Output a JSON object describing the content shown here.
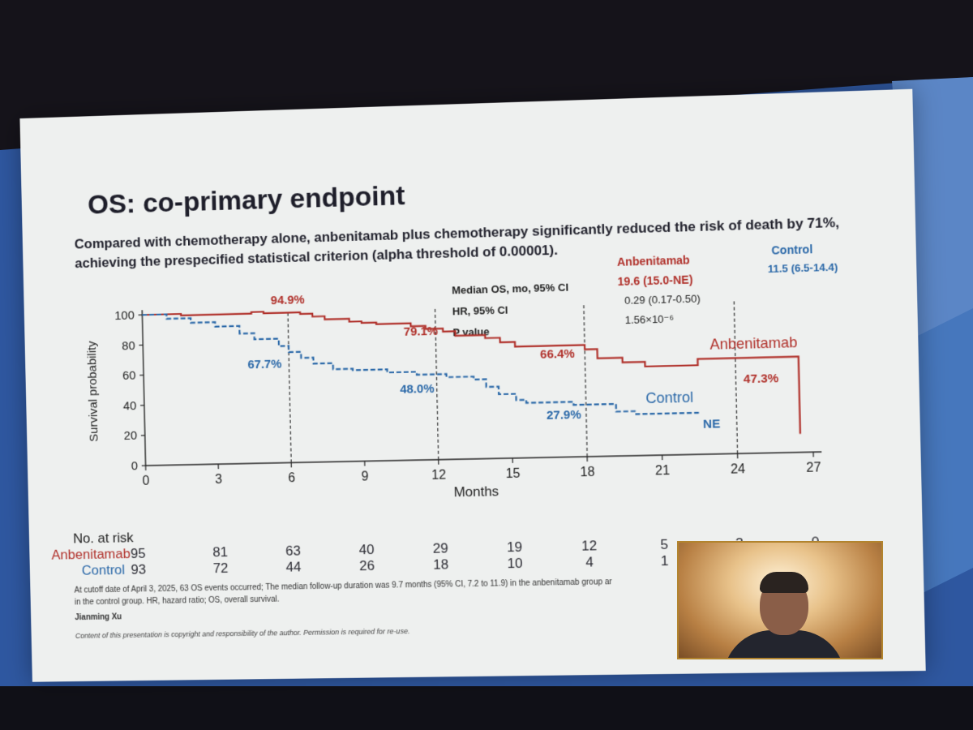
{
  "slide": {
    "title": "OS: co-primary endpoint",
    "subtitle_line1": "Compared with chemotherapy alone, anbenitamab plus chemotherapy significantly reduced the risk of death by 71%,",
    "subtitle_line2": "achieving the prespecified statistical criterion (alpha threshold of 0.00001).",
    "stats": {
      "header_anbenitamab": "Anbenitamab",
      "header_control": "Control",
      "median_label": "Median OS, mo, 95% CI",
      "hr_label": "HR, 95% CI",
      "p_label": "P value",
      "median_anbenitamab": "19.6 (15.0-NE)",
      "median_control": "11.5 (6.5-14.4)",
      "hr_value": "0.29 (0.17-0.50)",
      "p_value": "1.56×10⁻⁶"
    },
    "risk_table": {
      "title": "No. at risk",
      "rows": [
        {
          "label": "Anbenitamab",
          "values": [
            "95",
            "81",
            "63",
            "40",
            "29",
            "19",
            "12",
            "5",
            "3",
            "0"
          ]
        },
        {
          "label": "Control",
          "values": [
            "93",
            "72",
            "44",
            "26",
            "18",
            "10",
            "4",
            "1",
            "",
            ""
          ]
        }
      ]
    },
    "footnote_line1": "At cutoff date of April 3, 2025, 63 OS events occurred; The median follow-up duration was 9.7 months (95% CI, 7.2 to 11.9) in the anbenitamab group ar",
    "footnote_line2": "in the control group. HR, hazard ratio; OS, overall survival.",
    "author": "Jianming Xu",
    "copyright": "Content of this presentation is copyright and responsibility of the author. Permission is required for re-use."
  },
  "chart_data": {
    "type": "line",
    "title": "",
    "xlabel": "Months",
    "ylabel": "Survival probability",
    "xlim": [
      0,
      27
    ],
    "ylim": [
      0,
      100
    ],
    "x_ticks": [
      0,
      3,
      6,
      9,
      12,
      15,
      18,
      21,
      24,
      27
    ],
    "y_ticks": [
      0,
      20,
      40,
      60,
      80,
      100
    ],
    "colors": {
      "anbenitamab": "#b0302a",
      "control": "#2a68a8"
    },
    "series": [
      {
        "name": "Anbenitamab",
        "style": "solid step",
        "points": [
          [
            0,
            100
          ],
          [
            1.6,
            100
          ],
          [
            1.6,
            99
          ],
          [
            4.5,
            99
          ],
          [
            4.5,
            100
          ],
          [
            5,
            100
          ],
          [
            5,
            99
          ],
          [
            6.5,
            99
          ],
          [
            6.5,
            98
          ],
          [
            7,
            98
          ],
          [
            7,
            96
          ],
          [
            7.5,
            96
          ],
          [
            7.5,
            94
          ],
          [
            8.5,
            94
          ],
          [
            8.5,
            92
          ],
          [
            9,
            92
          ],
          [
            9,
            91
          ],
          [
            9.6,
            91
          ],
          [
            9.6,
            90
          ],
          [
            11,
            90
          ],
          [
            11,
            88
          ],
          [
            11.6,
            88
          ],
          [
            11.6,
            86
          ],
          [
            12.3,
            86
          ],
          [
            12.3,
            84
          ],
          [
            12.8,
            84
          ],
          [
            12.8,
            81
          ],
          [
            14,
            81
          ],
          [
            14,
            79
          ],
          [
            14.6,
            79
          ],
          [
            14.6,
            76
          ],
          [
            15.2,
            76
          ],
          [
            15.2,
            73
          ],
          [
            18,
            73
          ],
          [
            18,
            70
          ],
          [
            18.5,
            70
          ],
          [
            18.5,
            64
          ],
          [
            19.5,
            64
          ],
          [
            19.5,
            61
          ],
          [
            20.4,
            61
          ],
          [
            20.4,
            58
          ],
          [
            22.5,
            58
          ],
          [
            22.5,
            62
          ],
          [
            26.5,
            62
          ],
          [
            26.5,
            12
          ]
        ]
      },
      {
        "name": "Control",
        "style": "dashed step",
        "points": [
          [
            0,
            100
          ],
          [
            1,
            100
          ],
          [
            1,
            97
          ],
          [
            2,
            97
          ],
          [
            2,
            94
          ],
          [
            3,
            94
          ],
          [
            3,
            91
          ],
          [
            4,
            91
          ],
          [
            4,
            86
          ],
          [
            4.6,
            86
          ],
          [
            4.6,
            82
          ],
          [
            5.6,
            82
          ],
          [
            5.6,
            77
          ],
          [
            6,
            77
          ],
          [
            6,
            73
          ],
          [
            6.5,
            73
          ],
          [
            6.5,
            69
          ],
          [
            7,
            69
          ],
          [
            7,
            65
          ],
          [
            7.8,
            65
          ],
          [
            7.8,
            61
          ],
          [
            8.6,
            61
          ],
          [
            8.6,
            60
          ],
          [
            10,
            60
          ],
          [
            10,
            58
          ],
          [
            11.2,
            58
          ],
          [
            11.2,
            56
          ],
          [
            12.4,
            56
          ],
          [
            12.4,
            54
          ],
          [
            13.5,
            54
          ],
          [
            13.5,
            52
          ],
          [
            14,
            52
          ],
          [
            14,
            47
          ],
          [
            14.5,
            47
          ],
          [
            14.5,
            42
          ],
          [
            15.2,
            42
          ],
          [
            15.2,
            38
          ],
          [
            15.6,
            38
          ],
          [
            15.6,
            36
          ],
          [
            17.5,
            36
          ],
          [
            17.5,
            34
          ],
          [
            19.2,
            34
          ],
          [
            19.2,
            29
          ],
          [
            20,
            29
          ],
          [
            20,
            27
          ],
          [
            22.5,
            27
          ]
        ]
      }
    ],
    "annotations": [
      {
        "text": "94.9%",
        "series": "Anbenitamab",
        "month": 6
      },
      {
        "text": "79.1%",
        "series": "Anbenitamab",
        "month": 12
      },
      {
        "text": "66.4%",
        "series": "Anbenitamab",
        "month": 18
      },
      {
        "text": "47.3%",
        "series": "Anbenitamab",
        "month": 24
      },
      {
        "text": "67.7%",
        "series": "Control",
        "month": 6
      },
      {
        "text": "48.0%",
        "series": "Control",
        "month": 12
      },
      {
        "text": "27.9%",
        "series": "Control",
        "month": 18
      },
      {
        "text": "NE",
        "series": "Control",
        "month": 24
      }
    ],
    "series_labels": [
      {
        "text": "Anbenitamab",
        "series": "Anbenitamab"
      },
      {
        "text": "Control",
        "series": "Control"
      }
    ],
    "grid": false,
    "legend": "inline labels"
  }
}
